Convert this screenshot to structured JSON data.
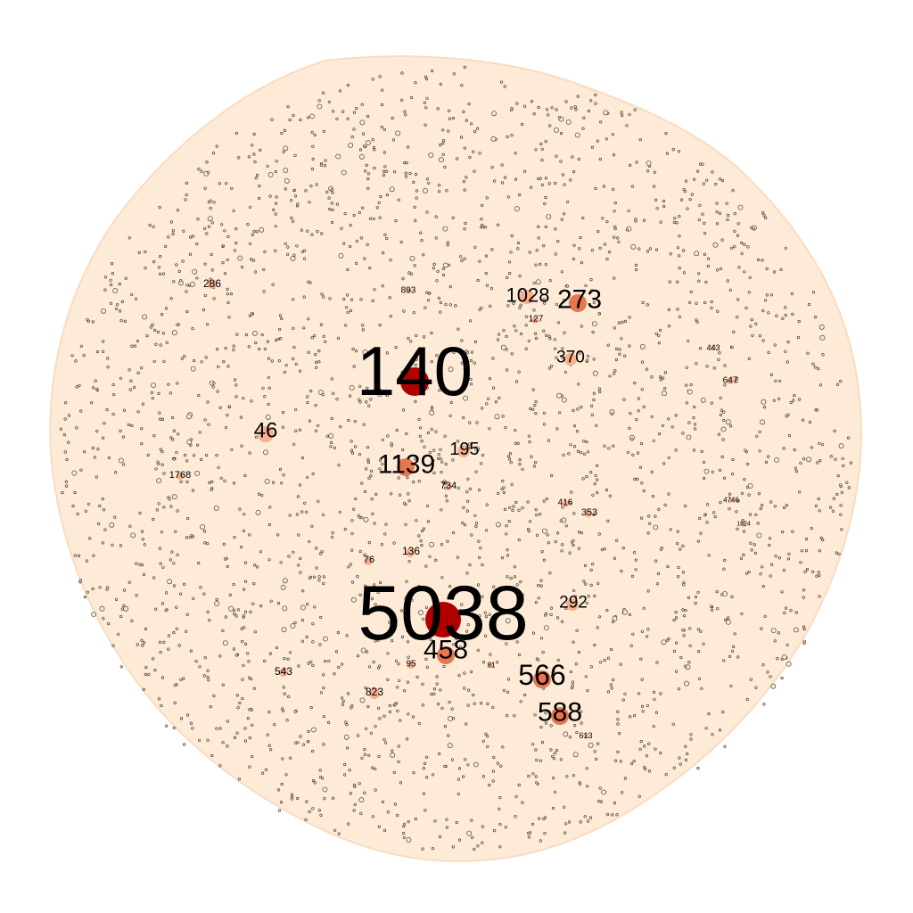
{
  "graph": {
    "colors": {
      "background": "#ffffff",
      "edge_cloud": "#fdebd7",
      "hub_dark": "#b00000",
      "node_mid": "#e8774f",
      "node_light": "#f7b08e",
      "label": "#000000"
    },
    "labeled_nodes": [
      {
        "id": "5038",
        "label": "5038",
        "rank": 1
      },
      {
        "id": "140",
        "label": "140",
        "rank": 1
      },
      {
        "id": "1139",
        "label": "1139",
        "rank": 2
      },
      {
        "id": "273",
        "label": "273",
        "rank": 2
      },
      {
        "id": "566",
        "label": "566",
        "rank": 2
      },
      {
        "id": "588",
        "label": "588",
        "rank": 2
      },
      {
        "id": "458",
        "label": "458",
        "rank": 2
      },
      {
        "id": "1028",
        "label": "1028",
        "rank": 3
      },
      {
        "id": "46",
        "label": "46",
        "rank": 3
      },
      {
        "id": "195",
        "label": "195",
        "rank": 3
      },
      {
        "id": "370",
        "label": "370",
        "rank": 3
      },
      {
        "id": "292",
        "label": "292",
        "rank": 3
      },
      {
        "id": "286",
        "label": "286",
        "rank": 4
      },
      {
        "id": "893",
        "label": "893",
        "rank": 4
      },
      {
        "id": "127",
        "label": "127",
        "rank": 4
      },
      {
        "id": "443",
        "label": "443",
        "rank": 4
      },
      {
        "id": "647",
        "label": "647",
        "rank": 4
      },
      {
        "id": "1768",
        "label": "1768",
        "rank": 4
      },
      {
        "id": "734",
        "label": "734",
        "rank": 4
      },
      {
        "id": "416",
        "label": "416",
        "rank": 4
      },
      {
        "id": "353",
        "label": "353",
        "rank": 4
      },
      {
        "id": "4746",
        "label": "4746",
        "rank": 4
      },
      {
        "id": "1824",
        "label": "1824",
        "rank": 4
      },
      {
        "id": "136",
        "label": "136",
        "rank": 4
      },
      {
        "id": "76",
        "label": "76",
        "rank": 4
      },
      {
        "id": "95",
        "label": "95",
        "rank": 4
      },
      {
        "id": "81",
        "label": "81",
        "rank": 4
      },
      {
        "id": "543",
        "label": "543",
        "rank": 4
      },
      {
        "id": "823",
        "label": "823",
        "rank": 4
      },
      {
        "id": "613",
        "label": "613",
        "rank": 4
      }
    ]
  }
}
